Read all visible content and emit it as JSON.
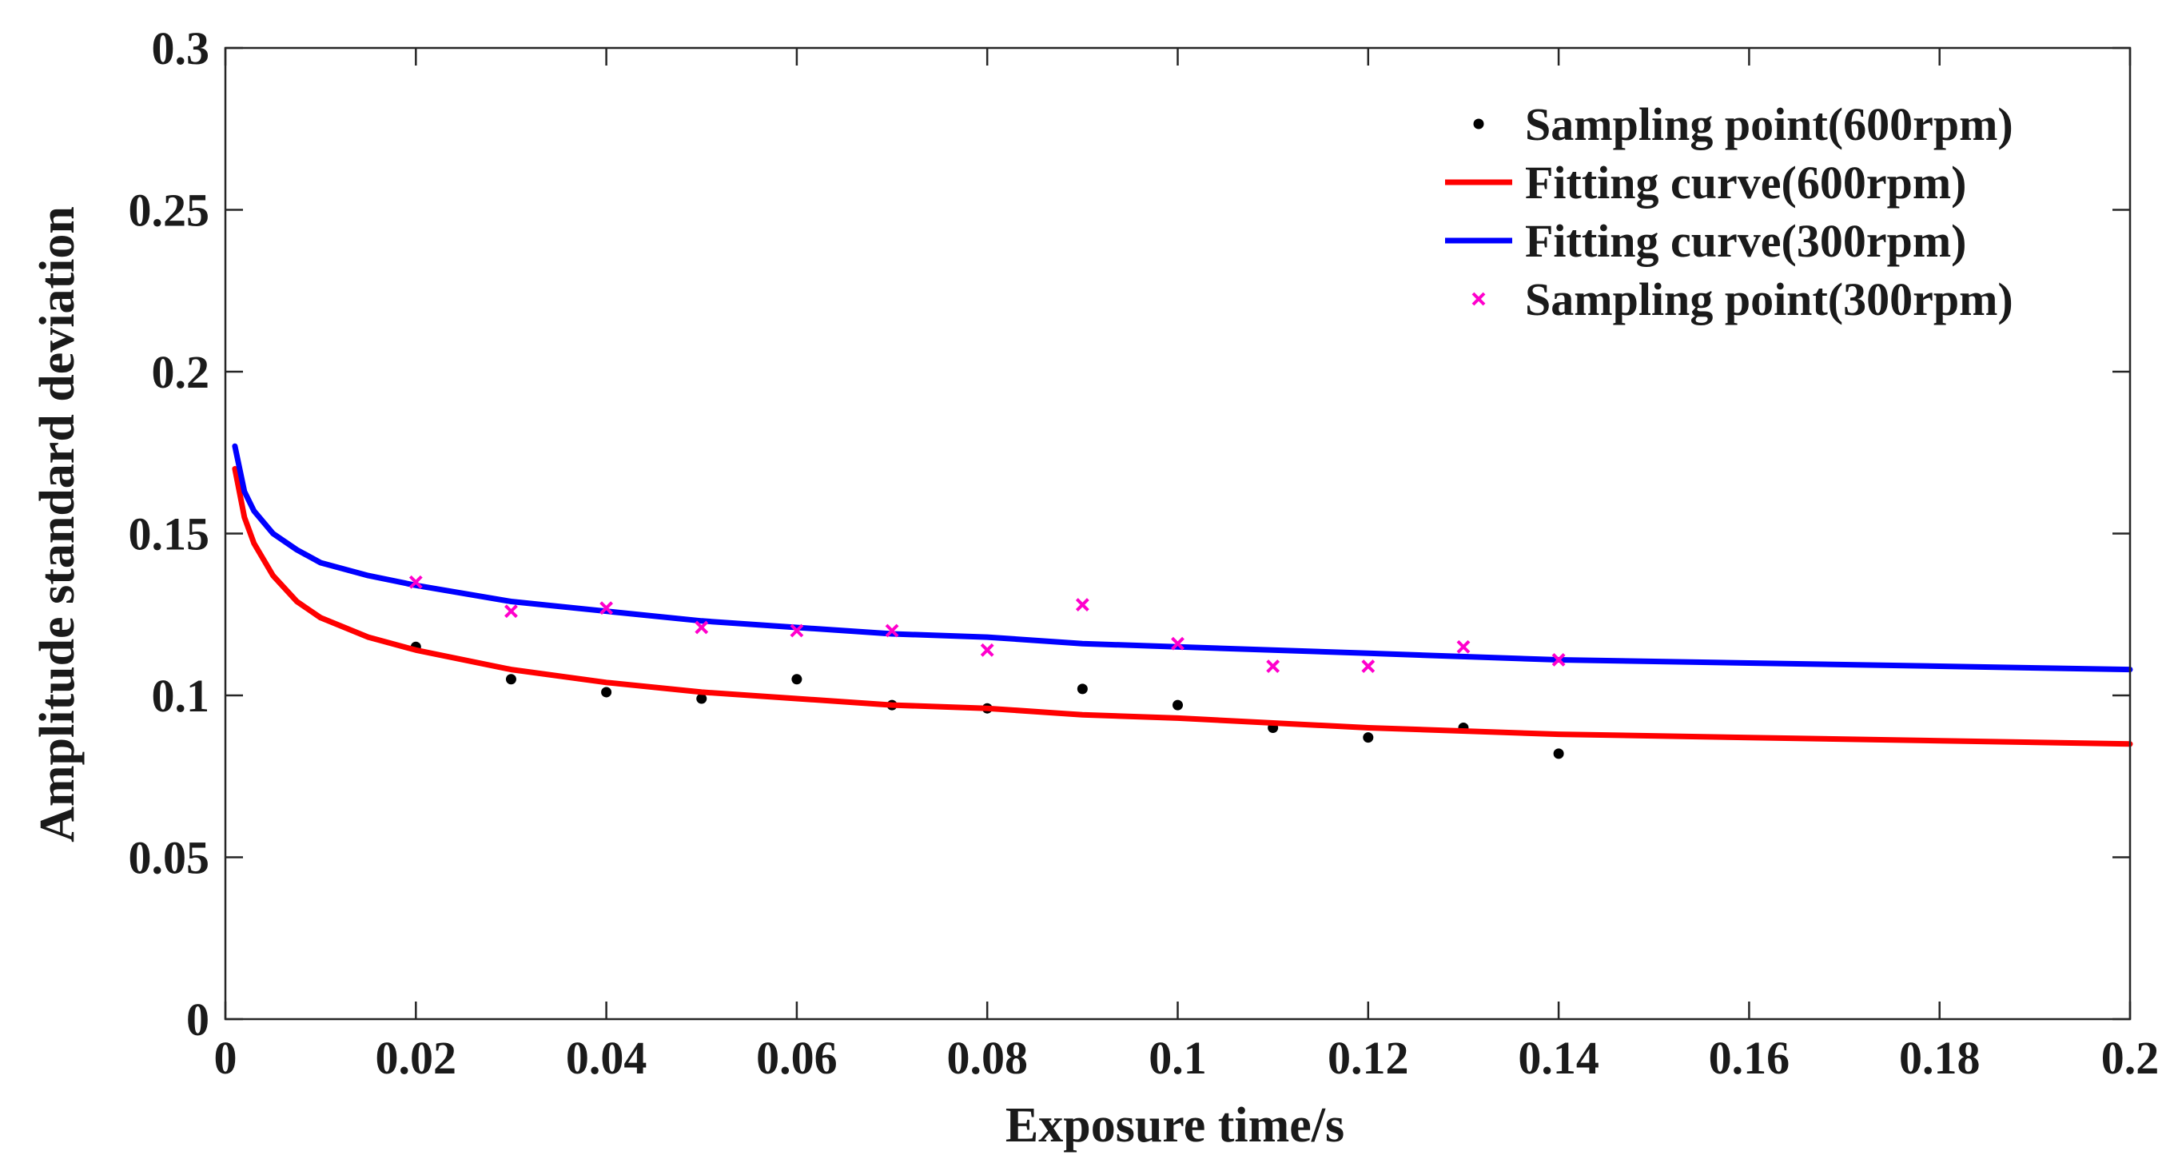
{
  "chart_data": {
    "type": "scatter",
    "title": "",
    "xlabel": "Exposure time/s",
    "ylabel": "Amplitude standard deviation",
    "xlim": [
      0,
      0.2
    ],
    "ylim": [
      0,
      0.3
    ],
    "xticks": [
      "0",
      "0.02",
      "0.04",
      "0.06",
      "0.08",
      "0.1",
      "0.12",
      "0.14",
      "0.16",
      "0.18",
      "0.2"
    ],
    "yticks": [
      "0",
      "0.05",
      "0.1",
      "0.15",
      "0.2",
      "0.25",
      "0.3"
    ],
    "grid": false,
    "legend_position": "top-right",
    "series": [
      {
        "name": "Sampling point(600rpm)",
        "kind": "scatter",
        "marker": "dot",
        "color": "#000000",
        "x": [
          0.02,
          0.03,
          0.04,
          0.05,
          0.06,
          0.07,
          0.08,
          0.09,
          0.1,
          0.11,
          0.12,
          0.13,
          0.14
        ],
        "y": [
          0.115,
          0.105,
          0.101,
          0.099,
          0.105,
          0.097,
          0.096,
          0.102,
          0.097,
          0.09,
          0.087,
          0.09,
          0.082
        ]
      },
      {
        "name": "Fitting curve(600rpm)",
        "kind": "line",
        "color": "#ff0000",
        "x": [
          0.001,
          0.002,
          0.003,
          0.005,
          0.0075,
          0.01,
          0.015,
          0.02,
          0.03,
          0.04,
          0.05,
          0.06,
          0.07,
          0.08,
          0.09,
          0.1,
          0.12,
          0.14,
          0.16,
          0.18,
          0.2
        ],
        "y": [
          0.17,
          0.155,
          0.147,
          0.137,
          0.129,
          0.124,
          0.118,
          0.114,
          0.108,
          0.104,
          0.101,
          0.099,
          0.097,
          0.096,
          0.094,
          0.093,
          0.09,
          0.088,
          0.087,
          0.086,
          0.085
        ]
      },
      {
        "name": "Fitting curve(300rpm)",
        "kind": "line",
        "color": "#0000ff",
        "x": [
          0.001,
          0.002,
          0.003,
          0.005,
          0.0075,
          0.01,
          0.015,
          0.02,
          0.03,
          0.04,
          0.05,
          0.06,
          0.07,
          0.08,
          0.09,
          0.1,
          0.12,
          0.14,
          0.16,
          0.18,
          0.2
        ],
        "y": [
          0.177,
          0.163,
          0.157,
          0.15,
          0.145,
          0.141,
          0.137,
          0.134,
          0.129,
          0.126,
          0.123,
          0.121,
          0.119,
          0.118,
          0.116,
          0.115,
          0.113,
          0.111,
          0.11,
          0.109,
          0.108
        ]
      },
      {
        "name": "Sampling point(300rpm)",
        "kind": "scatter",
        "marker": "x",
        "color": "#ff00cc",
        "x": [
          0.02,
          0.03,
          0.04,
          0.05,
          0.06,
          0.07,
          0.08,
          0.09,
          0.1,
          0.11,
          0.12,
          0.13,
          0.14
        ],
        "y": [
          0.135,
          0.126,
          0.127,
          0.121,
          0.12,
          0.12,
          0.114,
          0.128,
          0.116,
          0.109,
          0.109,
          0.115,
          0.111
        ]
      }
    ]
  }
}
